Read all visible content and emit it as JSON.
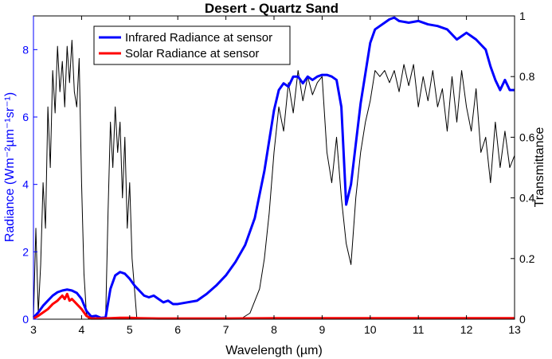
{
  "chart_data": {
    "type": "line",
    "title": "Desert - Quartz Sand",
    "xlabel": "Wavelength (µm)",
    "ylabel_left": "Radiance (Wm⁻²µm⁻¹sr⁻¹)",
    "ylabel_right": "Transmittance",
    "xlim": [
      3,
      13
    ],
    "ylim_left": [
      0,
      9
    ],
    "ylim_right": [
      0,
      1
    ],
    "xticks": [
      "3",
      "4",
      "5",
      "6",
      "7",
      "8",
      "9",
      "10",
      "11",
      "12",
      "13"
    ],
    "yticks_left": [
      "0",
      "2",
      "4",
      "6",
      "8"
    ],
    "yticks_right": [
      "0",
      "0.2",
      "0.4",
      "0.6",
      "0.8",
      "1"
    ],
    "legend_position": "top-left",
    "grid": false,
    "series": [
      {
        "name": "Infrared Radiance at sensor",
        "axis": "left",
        "color": "#0000ff",
        "x": [
          3.0,
          3.1,
          3.2,
          3.3,
          3.4,
          3.5,
          3.6,
          3.7,
          3.8,
          3.9,
          4.0,
          4.1,
          4.2,
          4.3,
          4.4,
          4.5,
          4.6,
          4.7,
          4.8,
          4.9,
          5.0,
          5.1,
          5.2,
          5.3,
          5.4,
          5.5,
          5.6,
          5.7,
          5.8,
          5.9,
          6.0,
          6.2,
          6.4,
          6.6,
          6.8,
          7.0,
          7.2,
          7.4,
          7.6,
          7.8,
          7.9,
          8.0,
          8.1,
          8.2,
          8.3,
          8.4,
          8.5,
          8.6,
          8.7,
          8.8,
          8.9,
          9.0,
          9.1,
          9.2,
          9.3,
          9.4,
          9.5,
          9.6,
          9.7,
          9.8,
          9.9,
          10.0,
          10.1,
          10.2,
          10.3,
          10.4,
          10.5,
          10.6,
          10.8,
          11.0,
          11.2,
          11.4,
          11.6,
          11.8,
          12.0,
          12.1,
          12.2,
          12.3,
          12.4,
          12.5,
          12.6,
          12.7,
          12.8,
          12.9,
          13.0
        ],
        "values": [
          0.05,
          0.2,
          0.4,
          0.55,
          0.7,
          0.8,
          0.85,
          0.88,
          0.85,
          0.78,
          0.6,
          0.25,
          0.08,
          0.1,
          0.04,
          0.05,
          0.9,
          1.3,
          1.4,
          1.35,
          1.2,
          1.0,
          0.85,
          0.7,
          0.65,
          0.7,
          0.6,
          0.5,
          0.55,
          0.45,
          0.45,
          0.5,
          0.55,
          0.75,
          1.0,
          1.3,
          1.7,
          2.2,
          3.0,
          4.4,
          5.3,
          6.2,
          6.8,
          7.0,
          6.9,
          7.2,
          7.2,
          7.0,
          7.2,
          7.1,
          7.2,
          7.25,
          7.25,
          7.2,
          7.1,
          6.3,
          3.4,
          4.0,
          5.2,
          6.4,
          7.3,
          8.2,
          8.6,
          8.7,
          8.8,
          8.9,
          8.95,
          8.85,
          8.8,
          8.85,
          8.75,
          8.7,
          8.6,
          8.3,
          8.5,
          8.4,
          8.3,
          8.15,
          8.0,
          7.5,
          7.1,
          6.8,
          7.1,
          6.8,
          6.8
        ]
      },
      {
        "name": "Solar Radiance at sensor",
        "axis": "left",
        "color": "#ff0000",
        "x": [
          3.0,
          3.1,
          3.2,
          3.3,
          3.4,
          3.5,
          3.6,
          3.65,
          3.7,
          3.75,
          3.8,
          3.9,
          4.0,
          4.1,
          4.2,
          4.4,
          4.6,
          4.8,
          5.0,
          5.2,
          5.6,
          6.0,
          7.0,
          8.0,
          9.0,
          10.0,
          11.0,
          12.0,
          13.0
        ],
        "values": [
          0.02,
          0.1,
          0.2,
          0.3,
          0.45,
          0.55,
          0.7,
          0.6,
          0.75,
          0.55,
          0.6,
          0.45,
          0.3,
          0.1,
          0.02,
          0.02,
          0.03,
          0.04,
          0.04,
          0.03,
          0.02,
          0.02,
          0.02,
          0.03,
          0.03,
          0.03,
          0.03,
          0.03,
          0.03
        ]
      },
      {
        "axis": "right",
        "color": "#000000",
        "x": [
          3.0,
          3.05,
          3.1,
          3.15,
          3.2,
          3.25,
          3.3,
          3.35,
          3.4,
          3.45,
          3.5,
          3.55,
          3.6,
          3.65,
          3.7,
          3.75,
          3.8,
          3.85,
          3.9,
          3.95,
          4.0,
          4.05,
          4.1,
          4.15,
          4.2,
          4.3,
          4.4,
          4.5,
          4.55,
          4.6,
          4.65,
          4.7,
          4.75,
          4.8,
          4.85,
          4.9,
          4.95,
          5.0,
          5.05,
          5.1,
          5.15,
          5.2,
          5.3,
          5.5,
          6.0,
          6.5,
          7.0,
          7.3,
          7.5,
          7.6,
          7.7,
          7.8,
          7.9,
          8.0,
          8.1,
          8.2,
          8.3,
          8.4,
          8.5,
          8.6,
          8.7,
          8.8,
          8.9,
          9.0,
          9.1,
          9.2,
          9.3,
          9.4,
          9.5,
          9.6,
          9.7,
          9.8,
          9.9,
          10.0,
          10.1,
          10.2,
          10.3,
          10.4,
          10.5,
          10.6,
          10.7,
          10.8,
          10.9,
          11.0,
          11.1,
          11.2,
          11.3,
          11.4,
          11.5,
          11.6,
          11.7,
          11.8,
          11.9,
          12.0,
          12.1,
          12.2,
          12.3,
          12.4,
          12.5,
          12.6,
          12.7,
          12.8,
          12.9,
          13.0
        ],
        "values": [
          0.0,
          0.3,
          0.02,
          0.18,
          0.45,
          0.3,
          0.7,
          0.5,
          0.82,
          0.68,
          0.9,
          0.75,
          0.85,
          0.7,
          0.9,
          0.78,
          0.92,
          0.75,
          0.7,
          0.86,
          0.45,
          0.15,
          0.02,
          0.0,
          0.0,
          0.0,
          0.0,
          0.0,
          0.35,
          0.65,
          0.5,
          0.7,
          0.55,
          0.65,
          0.4,
          0.6,
          0.3,
          0.45,
          0.2,
          0.1,
          0.0,
          0.0,
          0.0,
          0.0,
          0.0,
          0.0,
          0.0,
          0.0,
          0.02,
          0.06,
          0.1,
          0.2,
          0.35,
          0.55,
          0.7,
          0.62,
          0.78,
          0.68,
          0.82,
          0.72,
          0.8,
          0.74,
          0.78,
          0.8,
          0.55,
          0.45,
          0.6,
          0.4,
          0.25,
          0.18,
          0.4,
          0.55,
          0.65,
          0.72,
          0.82,
          0.8,
          0.82,
          0.78,
          0.82,
          0.75,
          0.84,
          0.77,
          0.84,
          0.7,
          0.8,
          0.72,
          0.82,
          0.7,
          0.76,
          0.62,
          0.8,
          0.65,
          0.82,
          0.7,
          0.62,
          0.76,
          0.55,
          0.6,
          0.45,
          0.65,
          0.5,
          0.62,
          0.5,
          0.54
        ]
      }
    ]
  }
}
